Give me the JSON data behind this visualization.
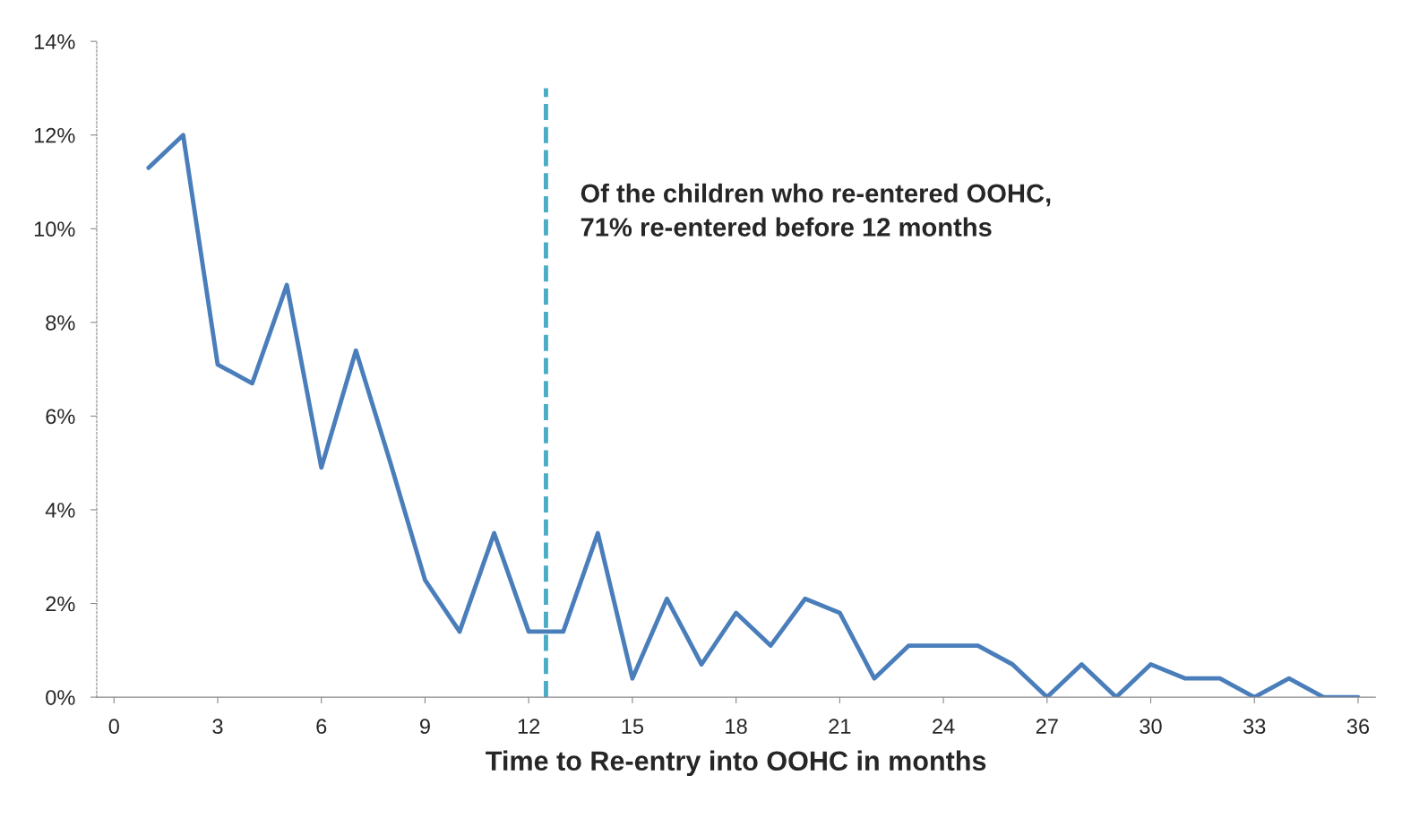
{
  "chart_data": {
    "type": "line",
    "xlabel": "Time to Re-entry into OOHC in months",
    "x": [
      1,
      2,
      3,
      4,
      5,
      6,
      7,
      8,
      9,
      10,
      11,
      12,
      13,
      14,
      15,
      16,
      17,
      18,
      19,
      20,
      21,
      22,
      23,
      24,
      25,
      26,
      27,
      28,
      29,
      30,
      31,
      32,
      33,
      34,
      35,
      36
    ],
    "series": [
      {
        "color": "#4a7ebb",
        "values": [
          11.3,
          12.0,
          7.1,
          6.7,
          8.8,
          4.9,
          7.4,
          5.0,
          2.5,
          1.4,
          3.5,
          1.4,
          1.4,
          3.5,
          0.4,
          2.1,
          0.7,
          1.8,
          1.1,
          2.1,
          1.8,
          0.4,
          1.1,
          1.1,
          1.1,
          0.7,
          0,
          0.7,
          0,
          0.7,
          0.4,
          0.4,
          0,
          0.4,
          0,
          0
        ]
      }
    ],
    "xlim": [
      -0.5,
      36.5
    ],
    "xticks": [
      0,
      3,
      6,
      9,
      12,
      15,
      18,
      21,
      24,
      27,
      30,
      33,
      36
    ],
    "ylim": [
      0,
      14
    ],
    "yticks": [
      {
        "value": 0,
        "label": "0%"
      },
      {
        "value": 2,
        "label": "2%"
      },
      {
        "value": 4,
        "label": "4%"
      },
      {
        "value": 6,
        "label": "6%"
      },
      {
        "value": 8,
        "label": "8%"
      },
      {
        "value": 10,
        "label": "10%"
      },
      {
        "value": 12,
        "label": "12%"
      },
      {
        "value": 14,
        "label": "14%"
      }
    ],
    "ref_lines": [
      {
        "axis": "x",
        "value": 12.5,
        "color": "#4bacc6",
        "line_style": "dashed"
      }
    ],
    "annotations": [
      "Of the children who re-entered OOHC,\n71% re-entered before 12 months"
    ],
    "grid": false,
    "marker": "none",
    "line_style": "solid"
  }
}
